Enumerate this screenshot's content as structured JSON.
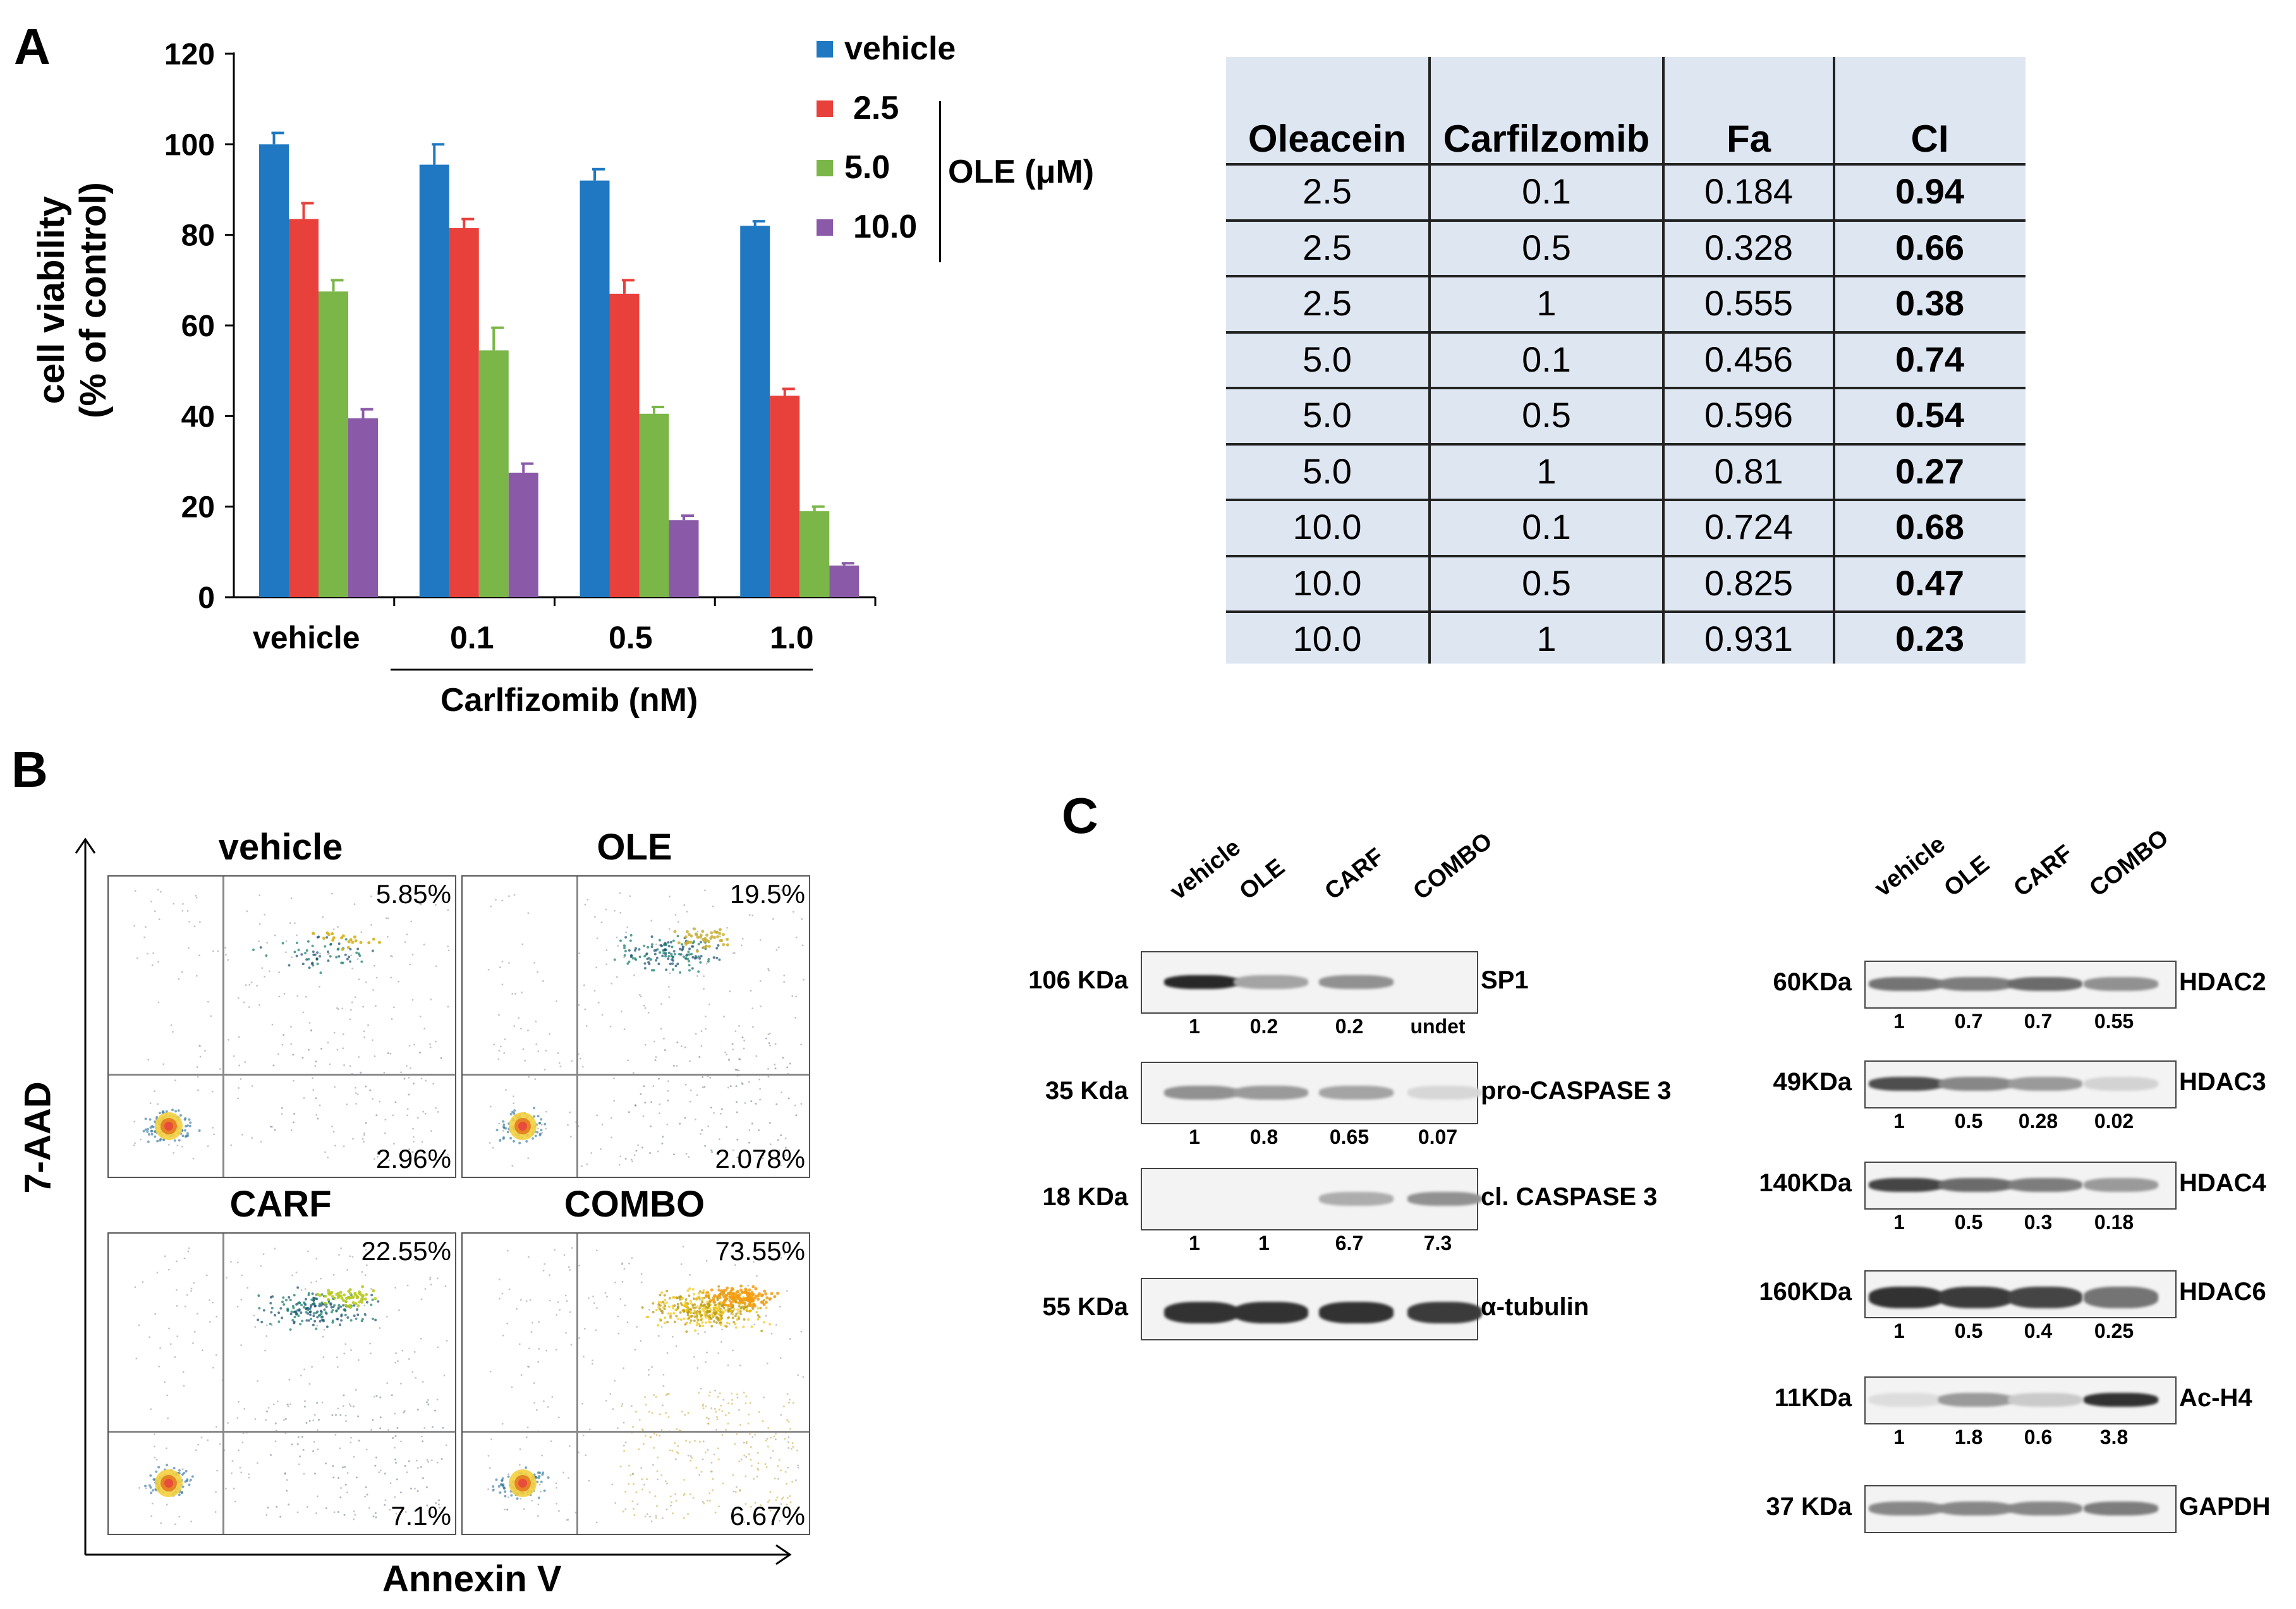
{
  "panels": {
    "a": "A",
    "b": "B",
    "c": "C"
  },
  "chart_data": {
    "type": "bar",
    "ylabel_line1": "cell viability",
    "ylabel_line2": "(% of control)",
    "xlabel": "Carlfizomib (nM)",
    "categories": [
      "vehicle",
      "0.1",
      "0.5",
      "1.0"
    ],
    "ylim": [
      0,
      120
    ],
    "yticks": [
      "0",
      "20",
      "40",
      "60",
      "80",
      "100",
      "120"
    ],
    "legend_group_label": "OLE (μM)",
    "series": [
      {
        "name": "vehicle",
        "color": "#1f78c1",
        "values": [
          100,
          95.5,
          92,
          82
        ],
        "errors": [
          2.5,
          4.5,
          2.5,
          1
        ]
      },
      {
        "name": "2.5",
        "color": "#e8413c",
        "values": [
          83.5,
          81.5,
          67,
          44.5
        ],
        "errors": [
          3.5,
          2,
          3,
          1.5
        ]
      },
      {
        "name": "5.0",
        "color": "#7ab648",
        "values": [
          67.5,
          54.5,
          40.5,
          19
        ],
        "errors": [
          2.5,
          5,
          1.5,
          1
        ]
      },
      {
        "name": "10.0",
        "color": "#8a5aa8",
        "values": [
          39.5,
          27.5,
          17,
          7
        ],
        "errors": [
          2,
          2,
          1,
          0.5
        ]
      }
    ]
  },
  "ci_table": {
    "headers": [
      "Oleacein",
      "Carfilzomib",
      "Fa",
      "CI"
    ],
    "rows": [
      [
        "2.5",
        "0.1",
        "0.184",
        "0.94"
      ],
      [
        "2.5",
        "0.5",
        "0.328",
        "0.66"
      ],
      [
        "2.5",
        "1",
        "0.555",
        "0.38"
      ],
      [
        "5.0",
        "0.1",
        "0.456",
        "0.74"
      ],
      [
        "5.0",
        "0.5",
        "0.596",
        "0.54"
      ],
      [
        "5.0",
        "1",
        "0.81",
        "0.27"
      ],
      [
        "10.0",
        "0.1",
        "0.724",
        "0.68"
      ],
      [
        "10.0",
        "0.5",
        "0.825",
        "0.47"
      ],
      [
        "10.0",
        "1",
        "0.931",
        "0.23"
      ]
    ]
  },
  "flow": {
    "ylabel": "7-AAD",
    "xlabel": "Annexin V",
    "plots": [
      {
        "title": "vehicle",
        "upper_right": "5.85%",
        "lower_right": "2.96%"
      },
      {
        "title": "OLE",
        "upper_right": "19.5%",
        "lower_right": "2.078%"
      },
      {
        "title": "CARF",
        "upper_right": "22.55%",
        "lower_right": "7.1%"
      },
      {
        "title": "COMBO",
        "upper_right": "73.55%",
        "lower_right": "6.67%"
      }
    ]
  },
  "western_left": {
    "lanes": [
      "vehicle",
      "OLE",
      "CARF",
      "COMBO"
    ],
    "blots": [
      {
        "mw": "106 KDa",
        "protein": "SP1",
        "quant": [
          "1",
          "0.2",
          "0.2",
          "undet"
        ],
        "intensity": [
          1,
          0.35,
          0.45,
          0
        ]
      },
      {
        "mw": "35 Kda",
        "protein": "pro-CASPASE 3",
        "quant": [
          "1",
          "0.8",
          "0.65",
          "0.07"
        ],
        "intensity": [
          0.45,
          0.4,
          0.35,
          0.08
        ]
      },
      {
        "mw": "18 KDa",
        "protein": "cl. CASPASE 3",
        "quant": [
          "1",
          "1",
          "6.7",
          "7.3"
        ],
        "intensity": [
          0,
          0,
          0.3,
          0.45
        ]
      },
      {
        "mw": "55 KDa",
        "protein": "α-tubulin",
        "quant": [],
        "intensity": [
          0.95,
          0.95,
          0.95,
          0.9
        ]
      }
    ]
  },
  "western_right": {
    "lanes": [
      "vehicle",
      "OLE",
      "CARF",
      "COMBO"
    ],
    "blots": [
      {
        "mw": "60KDa",
        "protein": "HDAC2",
        "quant": [
          "1",
          "0.7",
          "0.7",
          "0.55"
        ],
        "intensity": [
          0.6,
          0.55,
          0.65,
          0.45
        ]
      },
      {
        "mw": "49KDa",
        "protein": "HDAC3",
        "quant": [
          "1",
          "0.5",
          "0.28",
          "0.02"
        ],
        "intensity": [
          0.8,
          0.5,
          0.4,
          0.1
        ]
      },
      {
        "mw": "140KDa",
        "protein": "HDAC4",
        "quant": [
          "1",
          "0.5",
          "0.3",
          "0.18"
        ],
        "intensity": [
          0.85,
          0.65,
          0.55,
          0.4
        ]
      },
      {
        "mw": "160KDa",
        "protein": "HDAC6",
        "quant": [
          "1",
          "0.5",
          "0.4",
          "0.25"
        ],
        "intensity": [
          0.95,
          0.9,
          0.85,
          0.6
        ]
      },
      {
        "mw": "11KDa",
        "protein": "Ac-H4",
        "quant": [
          "1",
          "1.8",
          "0.6",
          "3.8"
        ],
        "intensity": [
          0.05,
          0.4,
          0.15,
          0.95
        ]
      },
      {
        "mw": "37 KDa",
        "protein": "GAPDH",
        "quant": [],
        "intensity": [
          0.5,
          0.5,
          0.5,
          0.55
        ]
      }
    ]
  }
}
